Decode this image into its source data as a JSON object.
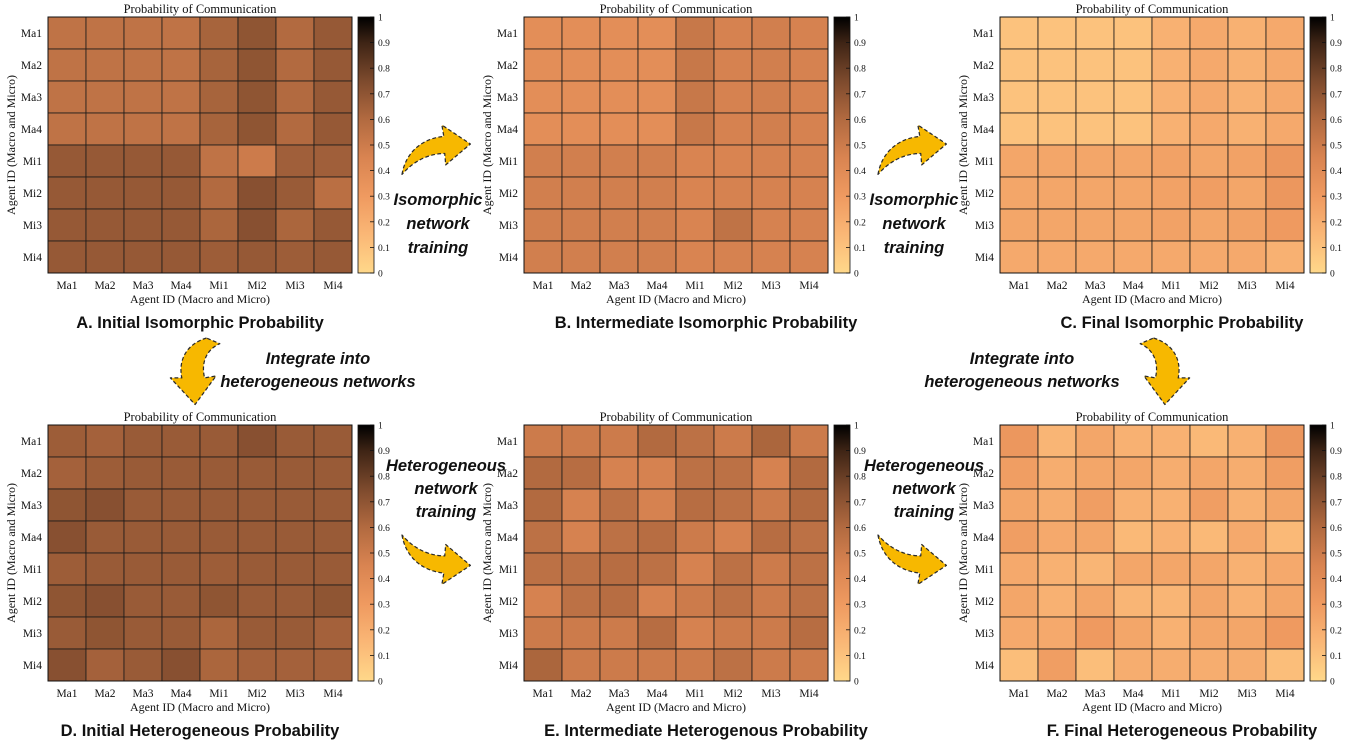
{
  "labels": [
    "Ma1",
    "Ma2",
    "Ma3",
    "Ma4",
    "Mi1",
    "Mi2",
    "Mi3",
    "Mi4"
  ],
  "colorbar_ticks": [
    "0",
    "0.1",
    "0.2",
    "0.3",
    "0.4",
    "0.5",
    "0.6",
    "0.7",
    "0.8",
    "0.9",
    "1"
  ],
  "arrows": {
    "iso_training": [
      "Isomorphic",
      "network",
      "training"
    ],
    "integrate": [
      "Integrate into",
      "heterogeneous networks"
    ],
    "het_training": [
      "Heterogeneous",
      "network",
      "training"
    ]
  },
  "colors": {
    "arrow_fill": "#F7B800",
    "arrow_stroke": "#2b2b2b",
    "grid": "#1a1a1a"
  },
  "chart_data": [
    {
      "type": "heatmap",
      "title": "Probability of Communication",
      "caption": "A. Initial Isomorphic Probability",
      "xlabel": "Agent ID (Macro and Micro)",
      "ylabel": "Agent ID (Macro and Micro)",
      "x": [
        "Ma1",
        "Ma2",
        "Ma3",
        "Ma4",
        "Mi1",
        "Mi2",
        "Mi3",
        "Mi4"
      ],
      "y": [
        "Ma1",
        "Ma2",
        "Ma3",
        "Ma4",
        "Mi1",
        "Mi2",
        "Mi3",
        "Mi4"
      ],
      "colorbar_range": [
        0,
        1
      ],
      "values": [
        [
          0.55,
          0.55,
          0.55,
          0.55,
          0.63,
          0.7,
          0.6,
          0.68
        ],
        [
          0.55,
          0.55,
          0.55,
          0.55,
          0.63,
          0.7,
          0.6,
          0.68
        ],
        [
          0.55,
          0.55,
          0.55,
          0.55,
          0.63,
          0.7,
          0.6,
          0.68
        ],
        [
          0.55,
          0.55,
          0.55,
          0.55,
          0.63,
          0.7,
          0.6,
          0.68
        ],
        [
          0.68,
          0.68,
          0.68,
          0.68,
          0.55,
          0.5,
          0.65,
          0.65
        ],
        [
          0.68,
          0.68,
          0.68,
          0.68,
          0.6,
          0.72,
          0.67,
          0.57
        ],
        [
          0.68,
          0.68,
          0.68,
          0.68,
          0.62,
          0.72,
          0.62,
          0.68
        ],
        [
          0.68,
          0.68,
          0.68,
          0.68,
          0.66,
          0.68,
          0.66,
          0.68
        ]
      ]
    },
    {
      "type": "heatmap",
      "title": "Probability of Communication",
      "caption": "B. Intermediate Isomorphic Probability",
      "xlabel": "Agent ID (Macro and Micro)",
      "ylabel": "Agent ID (Macro and Micro)",
      "x": [
        "Ma1",
        "Ma2",
        "Ma3",
        "Ma4",
        "Mi1",
        "Mi2",
        "Mi3",
        "Mi4"
      ],
      "y": [
        "Ma1",
        "Ma2",
        "Ma3",
        "Ma4",
        "Mi1",
        "Mi2",
        "Mi3",
        "Mi4"
      ],
      "colorbar_range": [
        0,
        1
      ],
      "values": [
        [
          0.38,
          0.38,
          0.38,
          0.38,
          0.52,
          0.46,
          0.48,
          0.46
        ],
        [
          0.38,
          0.38,
          0.38,
          0.38,
          0.52,
          0.46,
          0.48,
          0.46
        ],
        [
          0.38,
          0.38,
          0.38,
          0.38,
          0.52,
          0.46,
          0.48,
          0.46
        ],
        [
          0.38,
          0.38,
          0.38,
          0.38,
          0.52,
          0.46,
          0.48,
          0.46
        ],
        [
          0.48,
          0.48,
          0.48,
          0.48,
          0.45,
          0.45,
          0.46,
          0.46
        ],
        [
          0.48,
          0.48,
          0.48,
          0.48,
          0.45,
          0.46,
          0.46,
          0.46
        ],
        [
          0.48,
          0.48,
          0.48,
          0.48,
          0.45,
          0.55,
          0.46,
          0.46
        ],
        [
          0.48,
          0.48,
          0.48,
          0.48,
          0.45,
          0.46,
          0.46,
          0.46
        ]
      ]
    },
    {
      "type": "heatmap",
      "title": "Probability of Communication",
      "caption": "C. Final Isomorphic Probability",
      "xlabel": "Agent ID (Macro and Micro)",
      "ylabel": "Agent ID (Macro and Micro)",
      "x": [
        "Ma1",
        "Ma2",
        "Ma3",
        "Ma4",
        "Mi1",
        "Mi2",
        "Mi3",
        "Mi4"
      ],
      "y": [
        "Ma1",
        "Ma2",
        "Ma3",
        "Ma4",
        "Mi1",
        "Mi2",
        "Mi3",
        "Mi4"
      ],
      "colorbar_range": [
        0,
        1
      ],
      "values": [
        [
          0.1,
          0.1,
          0.1,
          0.1,
          0.18,
          0.22,
          0.18,
          0.22
        ],
        [
          0.1,
          0.1,
          0.1,
          0.1,
          0.18,
          0.22,
          0.18,
          0.22
        ],
        [
          0.1,
          0.1,
          0.1,
          0.1,
          0.18,
          0.22,
          0.18,
          0.22
        ],
        [
          0.1,
          0.1,
          0.1,
          0.1,
          0.18,
          0.22,
          0.18,
          0.22
        ],
        [
          0.24,
          0.24,
          0.24,
          0.24,
          0.26,
          0.24,
          0.26,
          0.32
        ],
        [
          0.24,
          0.24,
          0.24,
          0.24,
          0.26,
          0.28,
          0.24,
          0.32
        ],
        [
          0.24,
          0.24,
          0.24,
          0.24,
          0.26,
          0.24,
          0.26,
          0.3
        ],
        [
          0.22,
          0.22,
          0.22,
          0.22,
          0.22,
          0.22,
          0.22,
          0.18
        ]
      ]
    },
    {
      "type": "heatmap",
      "title": "Probability of Communication",
      "caption": "D. Initial Heterogeneous Probability",
      "xlabel": "Agent ID (Macro and Micro)",
      "ylabel": "Agent ID (Macro and Micro)",
      "x": [
        "Ma1",
        "Ma2",
        "Ma3",
        "Ma4",
        "Mi1",
        "Mi2",
        "Mi3",
        "Mi4"
      ],
      "y": [
        "Ma1",
        "Ma2",
        "Ma3",
        "Ma4",
        "Mi1",
        "Mi2",
        "Mi3",
        "Mi4"
      ],
      "colorbar_range": [
        0,
        1
      ],
      "values": [
        [
          0.66,
          0.64,
          0.67,
          0.67,
          0.67,
          0.72,
          0.67,
          0.67
        ],
        [
          0.64,
          0.66,
          0.67,
          0.67,
          0.67,
          0.67,
          0.67,
          0.67
        ],
        [
          0.7,
          0.72,
          0.67,
          0.67,
          0.67,
          0.67,
          0.67,
          0.67
        ],
        [
          0.72,
          0.67,
          0.67,
          0.67,
          0.67,
          0.67,
          0.67,
          0.67
        ],
        [
          0.66,
          0.67,
          0.67,
          0.67,
          0.66,
          0.67,
          0.67,
          0.67
        ],
        [
          0.7,
          0.72,
          0.67,
          0.67,
          0.7,
          0.67,
          0.67,
          0.7
        ],
        [
          0.67,
          0.7,
          0.67,
          0.67,
          0.62,
          0.67,
          0.67,
          0.64
        ],
        [
          0.72,
          0.64,
          0.67,
          0.72,
          0.62,
          0.64,
          0.64,
          0.64
        ]
      ]
    },
    {
      "type": "heatmap",
      "title": "Probability of Communication",
      "caption": "E. Intermediate Heterogenous Probability",
      "xlabel": "Agent ID (Macro and Micro)",
      "ylabel": "Agent ID (Macro and Micro)",
      "x": [
        "Ma1",
        "Ma2",
        "Ma3",
        "Ma4",
        "Mi1",
        "Mi2",
        "Mi3",
        "Mi4"
      ],
      "y": [
        "Ma1",
        "Ma2",
        "Ma3",
        "Ma4",
        "Mi1",
        "Mi2",
        "Mi3",
        "Mi4"
      ],
      "colorbar_range": [
        0,
        1
      ],
      "values": [
        [
          0.5,
          0.5,
          0.5,
          0.6,
          0.56,
          0.5,
          0.62,
          0.5
        ],
        [
          0.6,
          0.58,
          0.46,
          0.46,
          0.56,
          0.56,
          0.46,
          0.6
        ],
        [
          0.6,
          0.46,
          0.56,
          0.46,
          0.58,
          0.56,
          0.5,
          0.6
        ],
        [
          0.56,
          0.46,
          0.56,
          0.58,
          0.5,
          0.46,
          0.58,
          0.56
        ],
        [
          0.56,
          0.56,
          0.58,
          0.56,
          0.46,
          0.56,
          0.5,
          0.56
        ],
        [
          0.46,
          0.56,
          0.58,
          0.46,
          0.5,
          0.56,
          0.5,
          0.56
        ],
        [
          0.5,
          0.5,
          0.5,
          0.58,
          0.46,
          0.5,
          0.5,
          0.58
        ],
        [
          0.62,
          0.5,
          0.5,
          0.5,
          0.5,
          0.56,
          0.5,
          0.5
        ]
      ]
    },
    {
      "type": "heatmap",
      "title": "Probability of Communication",
      "caption": "F. Final Heterogeneous Probability",
      "xlabel": "Agent ID (Macro and Micro)",
      "ylabel": "Agent ID (Macro and Micro)",
      "x": [
        "Ma1",
        "Ma2",
        "Ma3",
        "Ma4",
        "Mi1",
        "Mi2",
        "Mi3",
        "Mi4"
      ],
      "y": [
        "Ma1",
        "Ma2",
        "Ma3",
        "Ma4",
        "Mi1",
        "Mi2",
        "Mi3",
        "Mi4"
      ],
      "colorbar_range": [
        0,
        1
      ],
      "values": [
        [
          0.32,
          0.16,
          0.24,
          0.18,
          0.18,
          0.14,
          0.18,
          0.32
        ],
        [
          0.28,
          0.2,
          0.24,
          0.24,
          0.2,
          0.24,
          0.2,
          0.28
        ],
        [
          0.24,
          0.2,
          0.28,
          0.18,
          0.18,
          0.28,
          0.18,
          0.24
        ],
        [
          0.28,
          0.22,
          0.24,
          0.14,
          0.18,
          0.14,
          0.22,
          0.14
        ],
        [
          0.22,
          0.18,
          0.16,
          0.24,
          0.24,
          0.24,
          0.18,
          0.22
        ],
        [
          0.24,
          0.18,
          0.24,
          0.16,
          0.16,
          0.24,
          0.18,
          0.24
        ],
        [
          0.22,
          0.22,
          0.3,
          0.24,
          0.18,
          0.24,
          0.24,
          0.3
        ],
        [
          0.12,
          0.28,
          0.12,
          0.2,
          0.2,
          0.2,
          0.2,
          0.12
        ]
      ]
    }
  ]
}
